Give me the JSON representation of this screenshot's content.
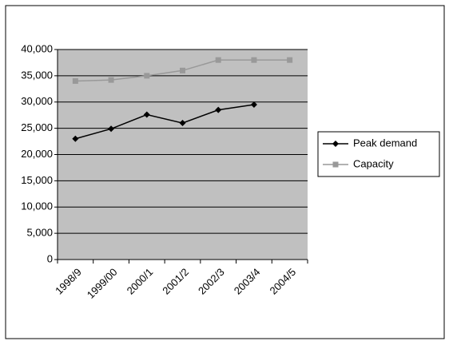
{
  "chart_data": {
    "type": "line",
    "categories": [
      "1998/9",
      "1999/00",
      "2000/1",
      "2001/2",
      "2002/3",
      "2003/4",
      "2004/5"
    ],
    "series": [
      {
        "name": "Peak demand",
        "color": "#000000",
        "marker": "diamond",
        "values": [
          23000,
          24900,
          27600,
          26000,
          28500,
          29500,
          null
        ]
      },
      {
        "name": "Capacity",
        "color": "#999999",
        "marker": "square",
        "values": [
          34000,
          34200,
          35000,
          36000,
          38000,
          38000,
          38000
        ]
      }
    ],
    "ylim": [
      0,
      40000
    ],
    "yticks": [
      0,
      {
        "value": 5000,
        "label": "5,000"
      },
      {
        "value": 10000,
        "label": "10,000"
      },
      {
        "value": 15000,
        "label": "15,000"
      },
      {
        "value": 20000,
        "label": "20,000"
      },
      {
        "value": 25000,
        "label": "25,000"
      },
      {
        "value": 30000,
        "label": "30,000"
      },
      {
        "value": 35000,
        "label": "35,000"
      },
      {
        "value": 40000,
        "label": "40,000"
      }
    ],
    "grid": true,
    "plot_background": "#c0c0c0",
    "legend": "right"
  }
}
